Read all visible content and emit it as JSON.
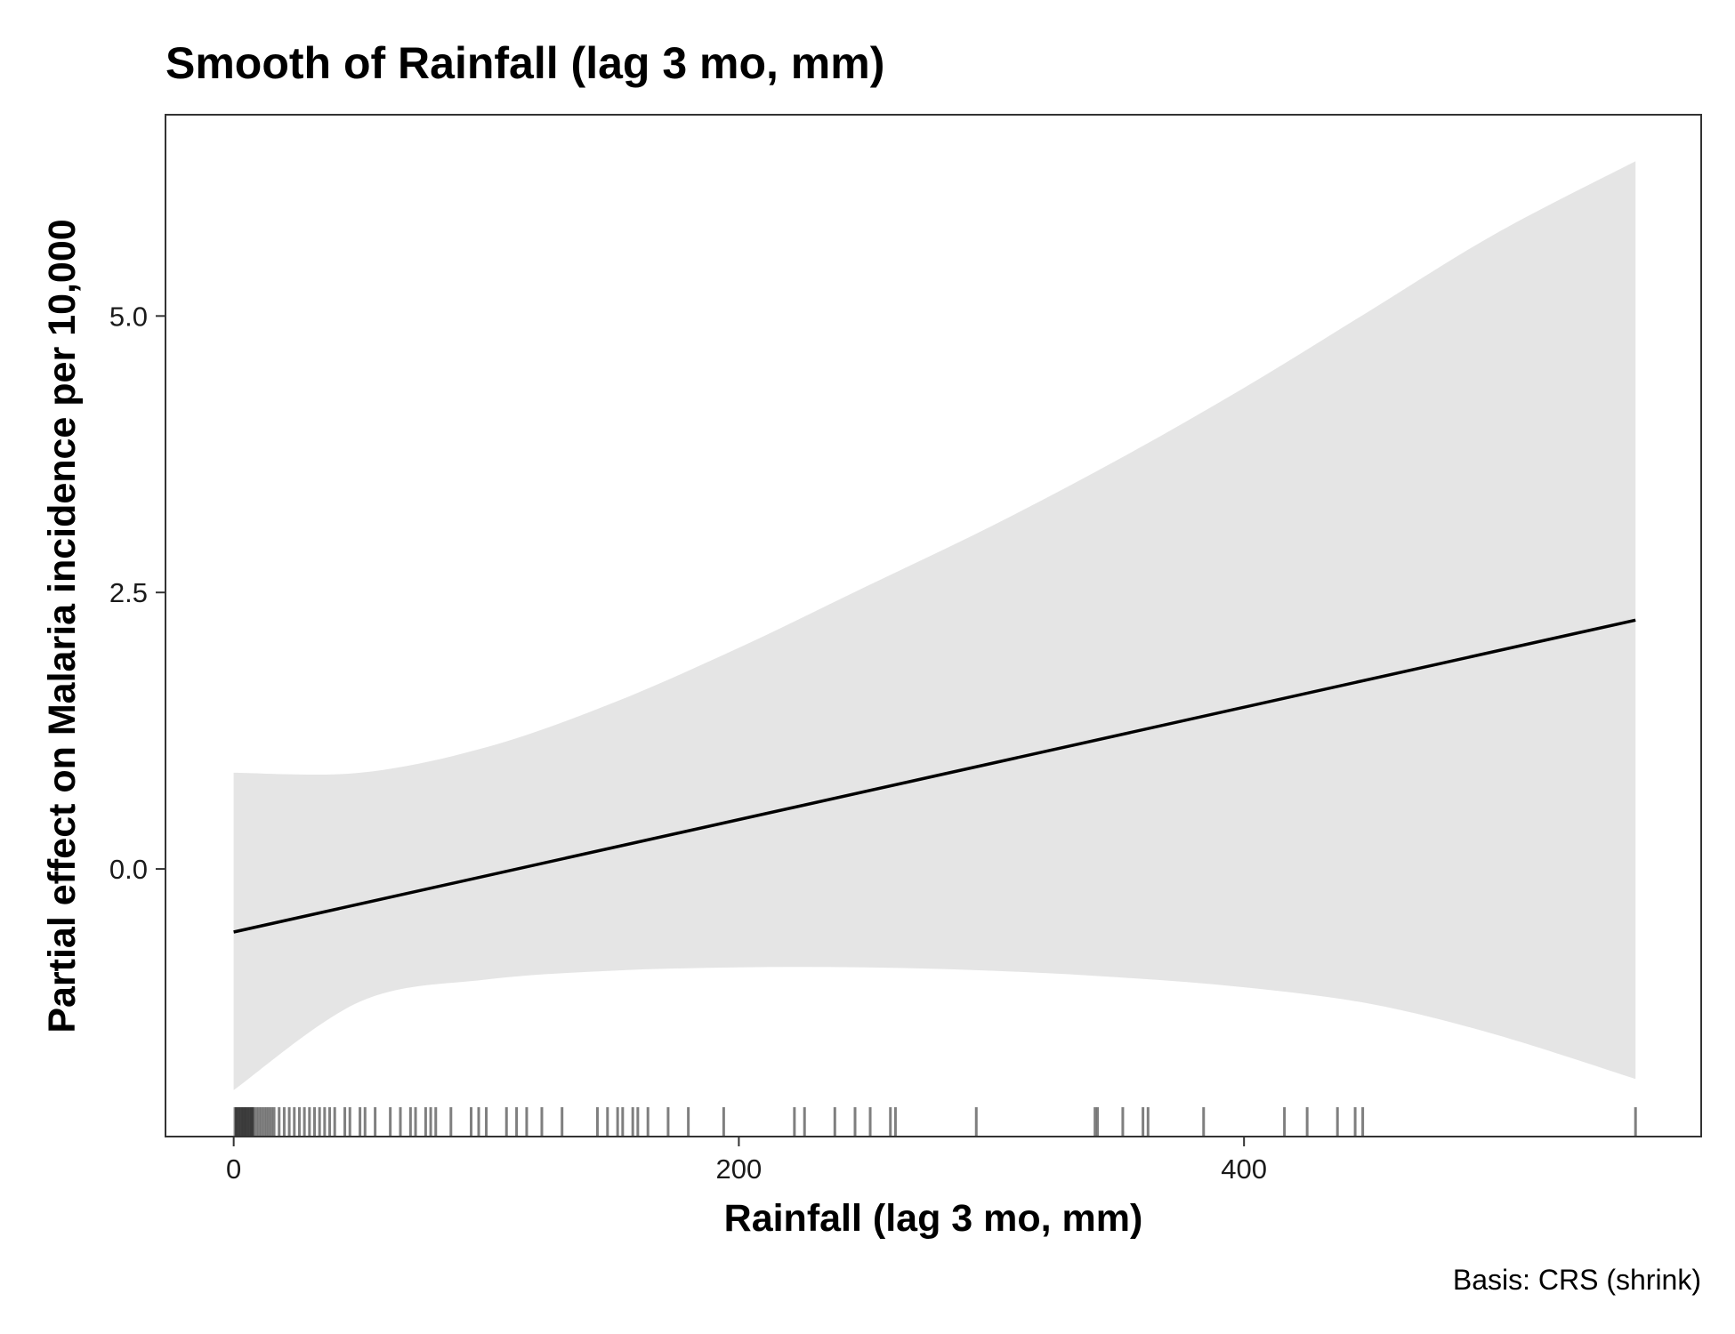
{
  "chart_data": {
    "type": "line",
    "title": "Smooth of Rainfall (lag 3 mo, mm)",
    "xlabel": "Rainfall (lag 3 mo, mm)",
    "ylabel": "Partial effect on Malaria incidence per 10,000",
    "caption": "Basis: CRS (shrink)",
    "xlim": [
      -27,
      581
    ],
    "ylim": [
      -2.42,
      6.82
    ],
    "x_ticks": [
      0,
      200,
      400
    ],
    "x_tick_labels": [
      "0",
      "200",
      "400"
    ],
    "y_ticks": [
      0,
      2.5,
      5
    ],
    "y_tick_labels": [
      "0.0",
      "2.5",
      "5.0"
    ],
    "grid": false,
    "series": [
      {
        "role": "smooth-fit",
        "x": [
          0,
          555
        ],
        "y": [
          -0.57,
          2.25
        ]
      }
    ],
    "confidence_band": {
      "x": [
        0,
        50,
        100,
        150,
        200,
        250,
        300,
        350,
        400,
        450,
        500,
        555
      ],
      "upper": [
        0.87,
        0.87,
        1.1,
        1.5,
        2.0,
        2.55,
        3.1,
        3.7,
        4.35,
        5.05,
        5.75,
        6.4
      ],
      "lower": [
        -2.0,
        -1.2,
        -1.0,
        -0.92,
        -0.89,
        -0.89,
        -0.92,
        -0.98,
        -1.07,
        -1.22,
        -1.5,
        -1.9
      ]
    },
    "rug": [
      0.5,
      1,
      1.5,
      2,
      2.5,
      3,
      3.5,
      4,
      4.5,
      5,
      5.5,
      6,
      6.5,
      7,
      7.5,
      8,
      9,
      10,
      11,
      12,
      13,
      14,
      15,
      16,
      18,
      20,
      22,
      24,
      26,
      28,
      30,
      32,
      34,
      36,
      38,
      40,
      44,
      46,
      50,
      52,
      56,
      62,
      66,
      70,
      72,
      76,
      78,
      80,
      86,
      94,
      97,
      100,
      108,
      112,
      116,
      122,
      130,
      144,
      148,
      152,
      154,
      158,
      160,
      164,
      172,
      180,
      194,
      222,
      226,
      238,
      246,
      252,
      260,
      262,
      294,
      341,
      342,
      352,
      360,
      362,
      384,
      416,
      425,
      437,
      444,
      447,
      555
    ]
  }
}
